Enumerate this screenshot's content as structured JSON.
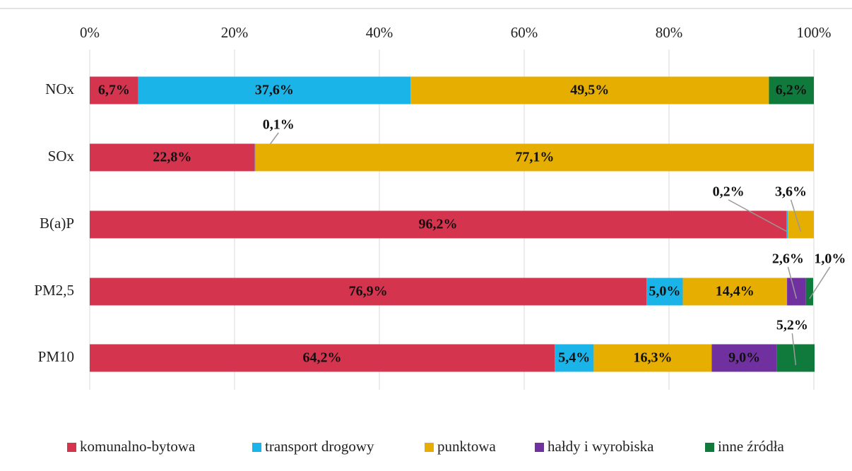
{
  "chart_data": {
    "type": "stacked_bar_horizontal",
    "categories": [
      "NOx",
      "SOx",
      "B(a)P",
      "PM2,5",
      "PM10"
    ],
    "xlim": [
      0,
      100
    ],
    "xticks": [
      {
        "value": 0,
        "label": "0%"
      },
      {
        "value": 20,
        "label": "20%"
      },
      {
        "value": 40,
        "label": "40%"
      },
      {
        "value": 60,
        "label": "60%"
      },
      {
        "value": 80,
        "label": "80%"
      },
      {
        "value": 100,
        "label": "100%"
      }
    ],
    "grid": true,
    "legend": "bottom",
    "series": [
      {
        "name": "komunalno-bytowa",
        "color": "#d5344f",
        "values": [
          6.7,
          22.8,
          96.2,
          76.9,
          64.2
        ],
        "value_labels": [
          "6,7%",
          "22,8%",
          "96,2%",
          "76,9%",
          "64,2%"
        ]
      },
      {
        "name": "transport drogowy",
        "color": "#1bb4e8",
        "values": [
          37.6,
          0.1,
          0.2,
          5.0,
          5.4
        ],
        "value_labels": [
          "37,6%",
          "0,1%",
          "0,2%",
          "5,0%",
          "5,4%"
        ]
      },
      {
        "name": "punktowa",
        "color": "#e5ae00",
        "values": [
          49.5,
          77.1,
          3.6,
          14.4,
          16.3
        ],
        "value_labels": [
          "49,5%",
          "77,1%",
          "3,6%",
          "14,4%",
          "16,3%"
        ]
      },
      {
        "name": "hałdy i wyrobiska",
        "color": "#7030a0",
        "values": [
          null,
          null,
          null,
          2.6,
          9.0
        ],
        "value_labels": [
          null,
          null,
          null,
          "2,6%",
          "9,0%"
        ]
      },
      {
        "name": "inne źródła",
        "color": "#0f7a3c",
        "values": [
          6.2,
          null,
          null,
          1.0,
          5.2
        ],
        "value_labels": [
          "6,2%",
          null,
          null,
          "1,0%",
          "5,2%"
        ]
      }
    ]
  }
}
